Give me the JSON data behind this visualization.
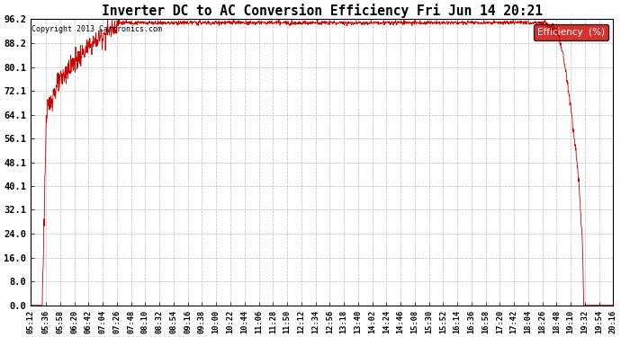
{
  "title": "Inverter DC to AC Conversion Efficiency Fri Jun 14 20:21",
  "copyright": "Copyright 2013 Cartronics.com",
  "legend_label": "Efficiency  (%)",
  "legend_bg": "#cc0000",
  "legend_text_color": "#ffffff",
  "line_color": "#cc0000",
  "bg_color": "#ffffff",
  "plot_bg_color": "#ffffff",
  "grid_color": "#bbbbbb",
  "yticks": [
    0.0,
    8.0,
    16.0,
    24.0,
    32.1,
    40.1,
    48.1,
    56.1,
    64.1,
    72.1,
    80.1,
    88.2,
    96.2
  ],
  "ytick_labels": [
    "0.0",
    "8.0",
    "16.0",
    "24.0",
    "32.1",
    "40.1",
    "48.1",
    "56.1",
    "64.1",
    "72.1",
    "80.1",
    "88.2",
    "96.2"
  ],
  "ymin": 0.0,
  "ymax": 96.2,
  "xtick_labels": [
    "05:12",
    "05:36",
    "05:58",
    "06:20",
    "06:42",
    "07:04",
    "07:26",
    "07:48",
    "08:10",
    "08:32",
    "08:54",
    "09:16",
    "09:38",
    "10:00",
    "10:22",
    "10:44",
    "11:06",
    "11:28",
    "11:50",
    "12:12",
    "12:34",
    "12:56",
    "13:18",
    "13:40",
    "14:02",
    "14:24",
    "14:46",
    "15:08",
    "15:30",
    "15:52",
    "16:14",
    "16:36",
    "16:58",
    "17:20",
    "17:42",
    "18:04",
    "18:26",
    "18:48",
    "19:10",
    "19:32",
    "19:54",
    "20:16"
  ]
}
